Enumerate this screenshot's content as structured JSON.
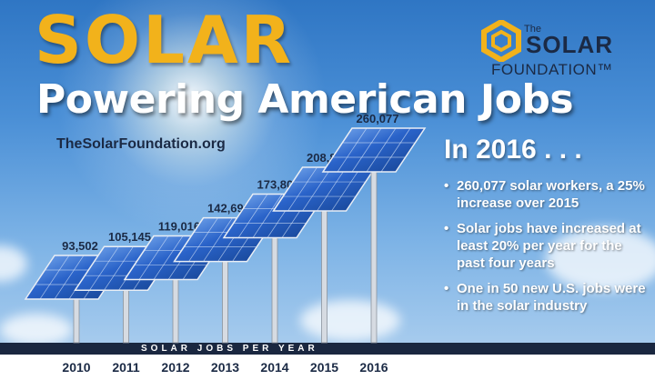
{
  "title": "SOLAR",
  "subtitle": "Powering American Jobs",
  "url": "TheSolarFoundation.org",
  "logo": {
    "the": "The",
    "solar": "SOLAR",
    "foundation": "FOUNDATION™"
  },
  "info": {
    "heading": "In 2016 . . .",
    "bullets": [
      "260,077 solar workers, a 25% increase over 2015",
      "Solar jobs have increased at least 20% per year for the past four years",
      "One in 50 new U.S. jobs were in the solar industry"
    ]
  },
  "colors": {
    "title": "#f2b21b",
    "band": "#1a2740",
    "panel": "#2a63c9"
  },
  "chart_data": {
    "type": "bar",
    "categories": [
      "2010",
      "2011",
      "2012",
      "2013",
      "2014",
      "2015",
      "2016"
    ],
    "values": [
      93502,
      105145,
      119016,
      142698,
      173807,
      208859,
      260077
    ],
    "value_labels": [
      "93,502",
      "105,145",
      "119,016",
      "142,698",
      "173,807",
      "208,859",
      "260,077"
    ],
    "xlabel": "SOLAR JOBS PER YEAR",
    "ylim": [
      0,
      260077
    ],
    "grid": false,
    "legend": "none"
  }
}
